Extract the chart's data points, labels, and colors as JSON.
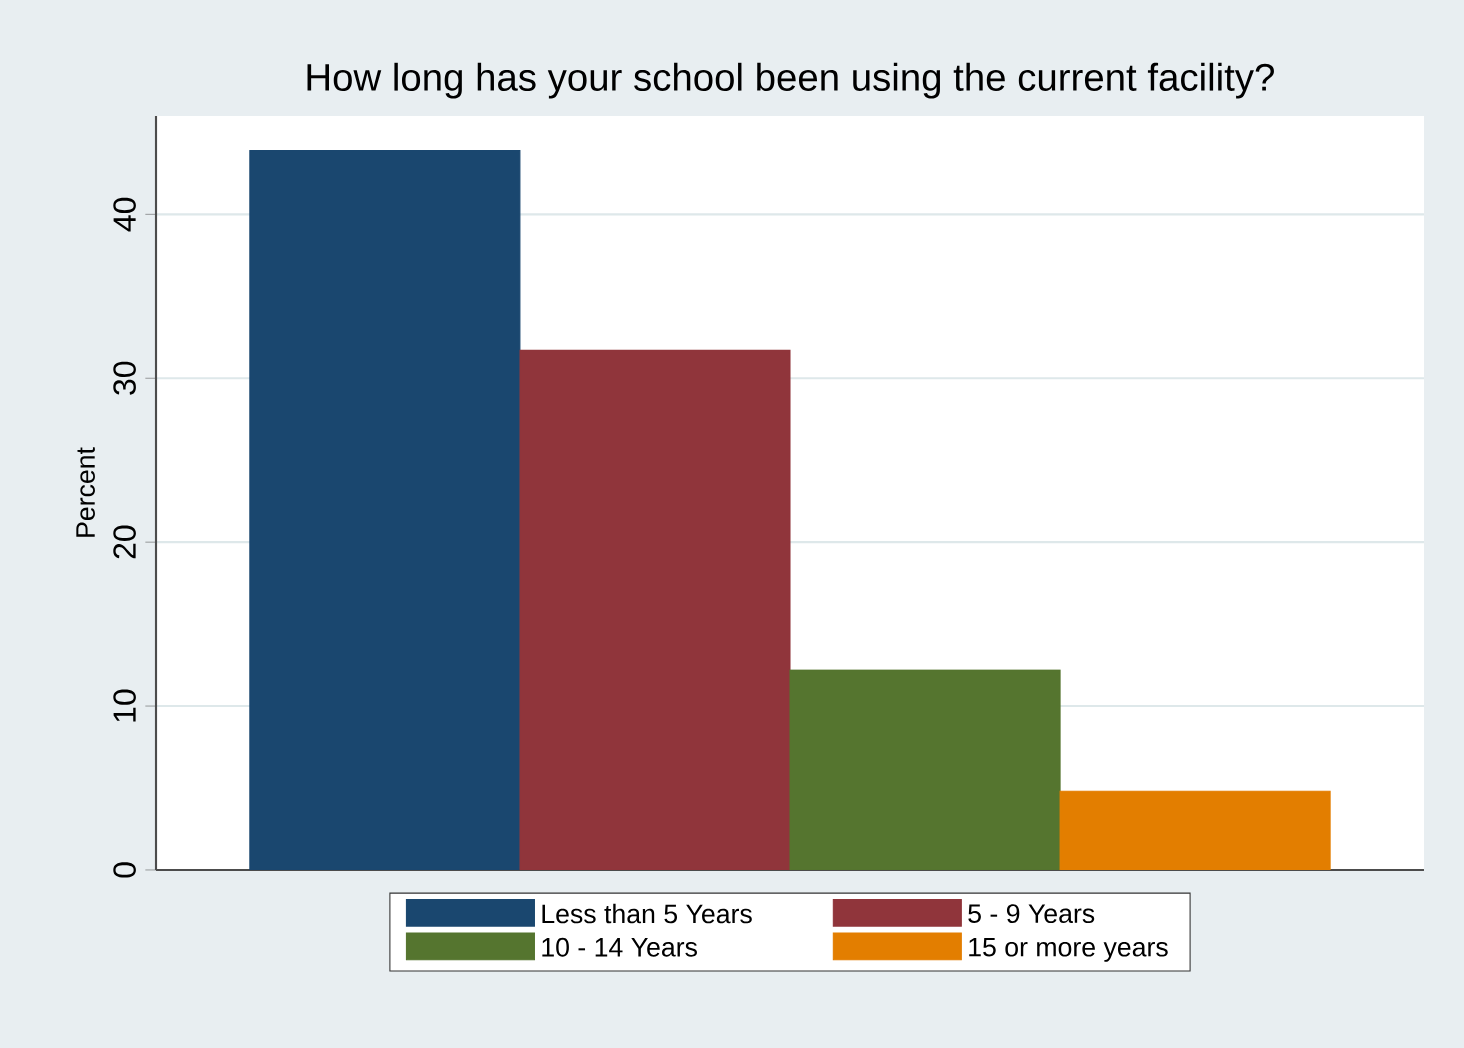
{
  "chart_data": {
    "type": "bar",
    "title": "How long has your school been using the current facility?",
    "ylabel": "Percent",
    "categories": [
      null
    ],
    "series": [
      {
        "name": "Less than 5 Years",
        "color": "#1a476f",
        "values": [
          43.9
        ]
      },
      {
        "name": "5 - 9 Years",
        "color": "#90353b",
        "values": [
          31.7
        ]
      },
      {
        "name": "10 - 14 Years",
        "color": "#55752f",
        "values": [
          12.2
        ]
      },
      {
        "name": "15 or more years",
        "color": "#e37e00",
        "values": [
          4.8
        ]
      }
    ],
    "ylim": [
      0,
      46
    ],
    "yticks": [
      0,
      10,
      20,
      30,
      40
    ],
    "grid": "y",
    "legend": "bottom"
  }
}
